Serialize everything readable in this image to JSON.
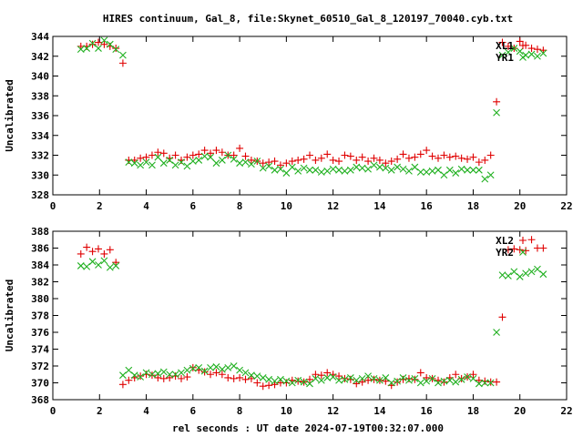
{
  "title": "HIRES continuum, Gal_8, file:Skynet_60510_Gal_8_120197_70040.cyb.txt",
  "xlabel": "rel seconds : UT date 2024-07-19T00:32:07.000",
  "colors": {
    "series_red": "#e00000",
    "series_green": "#20b020",
    "axis": "#000000"
  },
  "chart_data": [
    {
      "type": "scatter",
      "ylabel": "Uncalibrated",
      "xlim": [
        0,
        22
      ],
      "ylim": [
        328,
        344
      ],
      "xticks": [
        "0",
        "2",
        "4",
        "6",
        "8",
        "10",
        "12",
        "14",
        "16",
        "18",
        "20",
        "22"
      ],
      "yticks": [
        "328",
        "330",
        "332",
        "334",
        "336",
        "338",
        "340",
        "342",
        "344"
      ],
      "legend_position": "top-right",
      "series": [
        {
          "name": "XL1",
          "marker": "plus",
          "color": "#e00000",
          "x": [
            1.2,
            1.45,
            1.7,
            1.95,
            2.2,
            2.45,
            2.7,
            3.0,
            3.25,
            3.5,
            3.75,
            4.0,
            4.25,
            4.5,
            4.75,
            5.0,
            5.25,
            5.5,
            5.75,
            6.0,
            6.25,
            6.5,
            6.75,
            7.0,
            7.25,
            7.5,
            7.75,
            8.0,
            8.25,
            8.5,
            8.75,
            9.0,
            9.25,
            9.5,
            9.75,
            10.0,
            10.25,
            10.5,
            10.75,
            11.0,
            11.25,
            11.5,
            11.75,
            12.0,
            12.25,
            12.5,
            12.75,
            13.0,
            13.25,
            13.5,
            13.75,
            14.0,
            14.25,
            14.5,
            14.75,
            15.0,
            15.25,
            15.5,
            15.75,
            16.0,
            16.25,
            16.5,
            16.75,
            17.0,
            17.25,
            17.5,
            17.75,
            18.0,
            18.25,
            18.5,
            18.75,
            19.0,
            19.25,
            19.5,
            19.75,
            20.0,
            20.25,
            20.5,
            20.75,
            21.0
          ],
          "y": [
            343.0,
            343.0,
            343.2,
            343.4,
            343.2,
            343.0,
            342.8,
            341.3,
            331.5,
            331.5,
            331.7,
            331.8,
            332.0,
            332.3,
            332.2,
            331.7,
            332.0,
            331.5,
            331.8,
            332.0,
            332.1,
            332.5,
            332.2,
            332.5,
            332.3,
            332.0,
            332.0,
            332.7,
            331.9,
            331.5,
            331.4,
            331.2,
            331.3,
            331.4,
            331.0,
            331.2,
            331.4,
            331.5,
            331.6,
            332.0,
            331.5,
            331.7,
            332.1,
            331.5,
            331.4,
            332.0,
            331.9,
            331.5,
            331.8,
            331.4,
            331.7,
            331.5,
            331.2,
            331.4,
            331.6,
            332.1,
            331.7,
            331.8,
            332.1,
            332.5,
            331.9,
            331.7,
            332.0,
            331.8,
            331.9,
            331.7,
            331.6,
            331.8,
            331.3,
            331.5,
            332.0,
            337.4,
            343.4,
            343.0,
            342.8,
            343.5,
            343.1,
            342.8,
            342.7,
            342.6
          ]
        },
        {
          "name": "YR1",
          "marker": "cross",
          "color": "#20b020",
          "x": [
            1.2,
            1.45,
            1.7,
            1.95,
            2.2,
            2.45,
            2.7,
            3.0,
            3.25,
            3.5,
            3.75,
            4.0,
            4.25,
            4.5,
            4.75,
            5.0,
            5.25,
            5.5,
            5.75,
            6.0,
            6.25,
            6.5,
            6.75,
            7.0,
            7.25,
            7.5,
            7.75,
            8.0,
            8.25,
            8.5,
            8.75,
            9.0,
            9.25,
            9.5,
            9.75,
            10.0,
            10.25,
            10.5,
            10.75,
            11.0,
            11.25,
            11.5,
            11.75,
            12.0,
            12.25,
            12.5,
            12.75,
            13.0,
            13.25,
            13.5,
            13.75,
            14.0,
            14.25,
            14.5,
            14.75,
            15.0,
            15.25,
            15.5,
            15.75,
            16.0,
            16.25,
            16.5,
            16.75,
            17.0,
            17.25,
            17.5,
            17.75,
            18.0,
            18.25,
            18.5,
            18.75,
            19.0,
            19.25,
            19.5,
            19.75,
            20.0,
            20.25,
            20.5,
            20.75,
            21.0
          ],
          "y": [
            342.7,
            342.8,
            343.3,
            342.8,
            343.6,
            343.2,
            342.7,
            342.1,
            331.3,
            331.2,
            331.0,
            331.3,
            331.0,
            331.8,
            331.2,
            331.5,
            331.0,
            331.3,
            330.9,
            331.4,
            331.5,
            331.9,
            331.8,
            331.2,
            331.5,
            332.0,
            331.6,
            331.2,
            331.3,
            331.1,
            331.4,
            330.7,
            330.9,
            330.5,
            330.6,
            330.2,
            330.8,
            330.4,
            330.7,
            330.5,
            330.5,
            330.3,
            330.4,
            330.6,
            330.5,
            330.4,
            330.5,
            330.8,
            330.7,
            330.6,
            331.0,
            330.8,
            330.7,
            330.5,
            330.8,
            330.6,
            330.4,
            330.8,
            330.3,
            330.3,
            330.4,
            330.5,
            330.0,
            330.5,
            330.2,
            330.6,
            330.5,
            330.5,
            330.5,
            329.6,
            330.0,
            336.3,
            342.1,
            342.4,
            342.8,
            342.5,
            342.1,
            342.2,
            342.0,
            342.3
          ]
        }
      ]
    },
    {
      "type": "scatter",
      "ylabel": "Uncalibrated",
      "xlim": [
        0,
        22
      ],
      "ylim": [
        368,
        388
      ],
      "xticks": [
        "0",
        "2",
        "4",
        "6",
        "8",
        "10",
        "12",
        "14",
        "16",
        "18",
        "20",
        "22"
      ],
      "yticks": [
        "368",
        "370",
        "372",
        "374",
        "376",
        "378",
        "380",
        "382",
        "384",
        "386",
        "388"
      ],
      "legend_position": "top-right",
      "series": [
        {
          "name": "XL2",
          "marker": "plus",
          "color": "#e00000",
          "x": [
            1.2,
            1.45,
            1.7,
            1.95,
            2.2,
            2.45,
            2.7,
            3.0,
            3.25,
            3.5,
            3.75,
            4.0,
            4.25,
            4.5,
            4.75,
            5.0,
            5.25,
            5.5,
            5.75,
            6.0,
            6.25,
            6.5,
            6.75,
            7.0,
            7.25,
            7.5,
            7.75,
            8.0,
            8.25,
            8.5,
            8.75,
            9.0,
            9.25,
            9.5,
            9.75,
            10.0,
            10.25,
            10.5,
            10.75,
            11.0,
            11.25,
            11.5,
            11.75,
            12.0,
            12.25,
            12.5,
            12.75,
            13.0,
            13.25,
            13.5,
            13.75,
            14.0,
            14.25,
            14.5,
            14.75,
            15.0,
            15.25,
            15.5,
            15.75,
            16.0,
            16.25,
            16.5,
            16.75,
            17.0,
            17.25,
            17.5,
            17.75,
            18.0,
            18.25,
            18.5,
            18.75,
            19.0,
            19.25,
            19.5,
            19.75,
            20.0,
            20.25,
            20.5,
            20.75,
            21.0
          ],
          "y": [
            385.3,
            386.1,
            385.6,
            385.9,
            385.3,
            385.8,
            384.3,
            369.8,
            370.3,
            370.6,
            370.8,
            371.0,
            370.9,
            370.6,
            370.5,
            370.6,
            370.8,
            370.5,
            370.7,
            371.8,
            371.5,
            371.3,
            371.0,
            371.2,
            371.0,
            370.6,
            370.5,
            370.6,
            370.4,
            370.5,
            370.0,
            369.6,
            369.7,
            369.8,
            370.0,
            370.0,
            370.3,
            370.2,
            370.1,
            370.4,
            371.0,
            370.9,
            371.2,
            371.0,
            370.8,
            370.5,
            370.4,
            369.9,
            370.1,
            370.3,
            370.4,
            370.3,
            370.2,
            369.7,
            370.1,
            370.4,
            370.5,
            370.4,
            371.2,
            370.6,
            370.5,
            370.3,
            370.1,
            370.6,
            371.0,
            370.5,
            370.7,
            371.0,
            370.3,
            370.2,
            370.1,
            370.1,
            377.8,
            385.8,
            385.9,
            385.8,
            385.7,
            387.0,
            386.0,
            386.0
          ]
        },
        {
          "name": "YR2",
          "marker": "cross",
          "color": "#20b020",
          "x": [
            1.2,
            1.45,
            1.7,
            1.95,
            2.2,
            2.45,
            2.7,
            3.0,
            3.25,
            3.5,
            3.75,
            4.0,
            4.25,
            4.5,
            4.75,
            5.0,
            5.25,
            5.5,
            5.75,
            6.0,
            6.25,
            6.5,
            6.75,
            7.0,
            7.25,
            7.5,
            7.75,
            8.0,
            8.25,
            8.5,
            8.75,
            9.0,
            9.25,
            9.5,
            9.75,
            10.0,
            10.25,
            10.5,
            10.75,
            11.0,
            11.25,
            11.5,
            11.75,
            12.0,
            12.25,
            12.5,
            12.75,
            13.0,
            13.25,
            13.5,
            13.75,
            14.0,
            14.25,
            14.5,
            14.75,
            15.0,
            15.25,
            15.5,
            15.75,
            16.0,
            16.25,
            16.5,
            16.75,
            17.0,
            17.25,
            17.5,
            17.75,
            18.0,
            18.25,
            18.5,
            18.75,
            19.0,
            19.25,
            19.5,
            19.75,
            20.0,
            20.25,
            20.5,
            20.75,
            21.0
          ],
          "y": [
            383.9,
            383.8,
            384.4,
            384.0,
            384.5,
            383.7,
            383.9,
            370.9,
            371.5,
            370.9,
            370.7,
            371.2,
            371.0,
            371.1,
            371.3,
            371.0,
            371.0,
            371.2,
            371.5,
            371.7,
            371.8,
            371.4,
            371.8,
            371.9,
            371.6,
            371.8,
            372.0,
            371.5,
            371.2,
            370.9,
            370.8,
            370.6,
            370.4,
            370.2,
            370.4,
            370.2,
            370.0,
            370.3,
            370.1,
            369.9,
            370.5,
            370.3,
            370.6,
            370.7,
            370.3,
            370.4,
            370.6,
            370.3,
            370.5,
            370.8,
            370.5,
            370.3,
            370.6,
            370.0,
            370.2,
            370.6,
            370.3,
            370.5,
            370.0,
            370.2,
            370.5,
            370.0,
            370.2,
            370.3,
            370.1,
            370.4,
            370.7,
            370.5,
            369.9,
            370.0,
            370.0,
            376.0,
            382.8,
            382.7,
            383.2,
            382.6,
            383.0,
            383.2,
            383.5,
            382.9
          ]
        }
      ]
    }
  ]
}
